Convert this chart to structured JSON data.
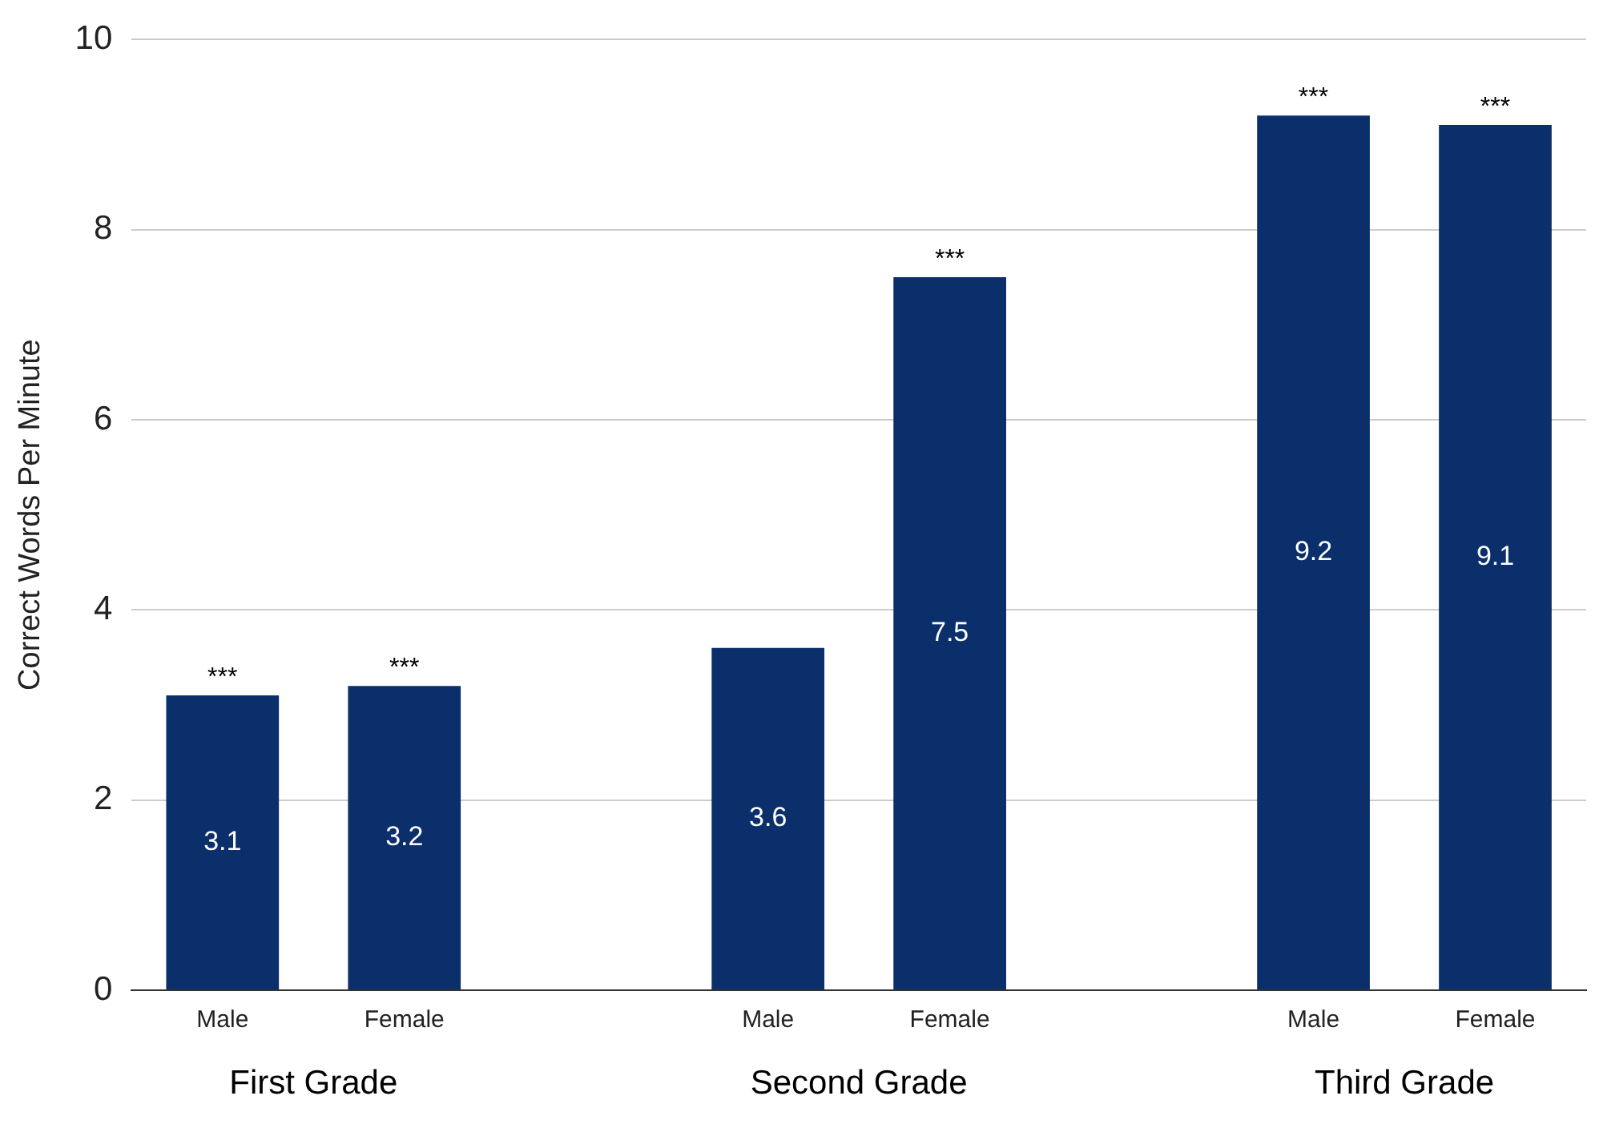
{
  "chart_data": {
    "type": "bar",
    "ylabel": "Correct Words Per Minute",
    "categories": [
      "Male",
      "Female",
      null,
      "Male",
      "Female",
      null,
      "Male",
      "Female"
    ],
    "values": [
      3.1,
      3.2,
      null,
      3.6,
      7.5,
      null,
      9.2,
      9.1
    ],
    "color": "#0b2f6b",
    "data_labels": true,
    "ylim": [
      0,
      10
    ],
    "yticks": [
      0,
      2,
      4,
      6,
      8,
      10
    ],
    "grid": "y",
    "legend": false,
    "annotations": [
      "First Grade",
      "Second Grade",
      "Third Grade",
      "***",
      "***",
      "***",
      "***",
      "***"
    ]
  }
}
